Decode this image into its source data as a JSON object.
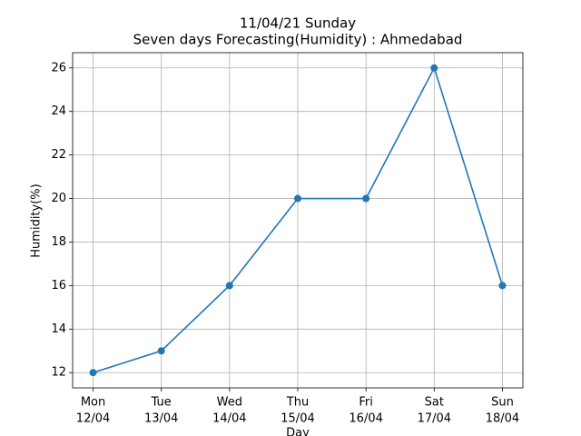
{
  "chart_data": {
    "type": "line",
    "title": "11/04/21 Sunday",
    "subtitle": "Seven days Forecasting(Humidity) : Ahmedabad",
    "xlabel": "Day",
    "ylabel": "Humidity(%)",
    "categories": [
      "Mon",
      "Tue",
      "Wed",
      "Thu",
      "Fri",
      "Sat",
      "Sun"
    ],
    "dates": [
      "12/04",
      "13/04",
      "14/04",
      "15/04",
      "16/04",
      "17/04",
      "18/04"
    ],
    "series": [
      {
        "name": "Humidity",
        "color": "#1f77b4",
        "values": [
          12,
          13,
          16,
          20,
          20,
          26,
          16
        ]
      }
    ],
    "ylim": [
      11.3,
      26.7
    ],
    "yticks": [
      12,
      14,
      16,
      18,
      20,
      22,
      24,
      26
    ],
    "grid": true
  }
}
